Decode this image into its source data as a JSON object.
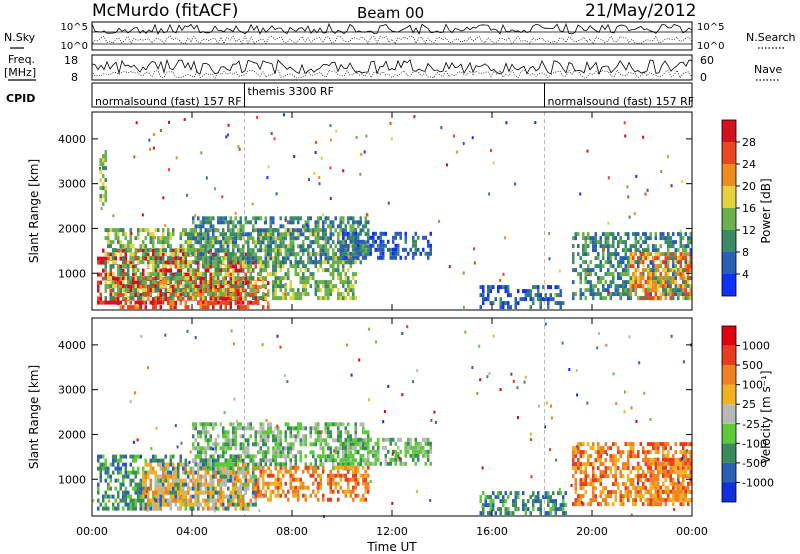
{
  "header": {
    "station": "McMurdo (fitACF)",
    "beam": "Beam 00",
    "date": "21/May/2012"
  },
  "status": {
    "nsky_label": "N.Sky",
    "nsearch_label": "N.Search",
    "freq_label_1": "Freq.",
    "freq_label_2": "[MHz]",
    "nave_label": "Nave",
    "cpid_label": "CPID",
    "count_ticks_left": [
      "10^5",
      "10^0"
    ],
    "count_ticks_right": [
      "10^5",
      "10^0"
    ],
    "freq_ticks_left": [
      "18",
      "8"
    ],
    "nave_ticks_right": [
      "60",
      "0"
    ],
    "cpid_segments": [
      {
        "label": "normalsound (fast) 157 RF",
        "start": 0,
        "end": 6.1
      },
      {
        "label": "themis 3300 RF",
        "start": 6.1,
        "end": 18.1
      },
      {
        "label": "normalsound (fast) 157 RF",
        "start": 18.1,
        "end": 24
      }
    ]
  },
  "chart_data": [
    {
      "type": "heatmap",
      "panel": "power",
      "ylabel": "Slant Range [km]",
      "xlabel": "",
      "x_range": [
        0,
        24
      ],
      "y_range": [
        180,
        4600
      ],
      "y_ticks": [
        1000,
        2000,
        3000,
        4000
      ],
      "colorbar_label": "Power [dB]",
      "colorbar_ticks": [
        "4",
        "8",
        "12",
        "16",
        "20",
        "24",
        "28"
      ],
      "colorbar_colors": [
        "#1030ff",
        "#2a5fb5",
        "#3b8a66",
        "#6ab04c",
        "#e6d23a",
        "#f08c1e",
        "#e8461e",
        "#d4101e"
      ],
      "regions": [
        {
          "t0": 0.2,
          "t1": 6.5,
          "r0": 300,
          "r1": 1500,
          "level": 7
        },
        {
          "t0": 1.0,
          "t1": 7.0,
          "r0": 200,
          "r1": 900,
          "level": 6
        },
        {
          "t0": 0.5,
          "t1": 10.5,
          "r0": 400,
          "r1": 2000,
          "level": 3
        },
        {
          "t0": 4.0,
          "t1": 11.0,
          "r0": 1200,
          "r1": 2200,
          "level": 2
        },
        {
          "t0": 10.0,
          "t1": 13.5,
          "r0": 1300,
          "r1": 1900,
          "level": 1
        },
        {
          "t0": 0.3,
          "t1": 0.6,
          "r0": 2500,
          "r1": 3700,
          "level": 3
        },
        {
          "t0": 19.2,
          "t1": 24.0,
          "r0": 400,
          "r1": 1900,
          "level": 2
        },
        {
          "t0": 21.5,
          "t1": 24.0,
          "r0": 400,
          "r1": 1400,
          "level": 5
        },
        {
          "t0": 15.5,
          "t1": 19.0,
          "r0": 200,
          "r1": 700,
          "level": 1
        }
      ]
    },
    {
      "type": "heatmap",
      "panel": "velocity",
      "ylabel": "Slant Range [km]",
      "xlabel": "Time UT",
      "x_range": [
        0,
        24
      ],
      "y_range": [
        180,
        4600
      ],
      "y_ticks": [
        1000,
        2000,
        3000,
        4000
      ],
      "x_ticks": [
        "00:00",
        "04:00",
        "08:00",
        "12:00",
        "16:00",
        "20:00",
        "00:00"
      ],
      "colorbar_label": "Velocity [m s⁻¹]",
      "colorbar_ticks": [
        "1000",
        "500",
        "100",
        "25",
        "-25",
        "-100",
        "-500",
        "-1000"
      ],
      "colorbar_colors": [
        "#1030e0",
        "#2a5fb5",
        "#3a8a5a",
        "#5cc83a",
        "#b8b8b8",
        "#f0b020",
        "#f08020",
        "#e83c1e",
        "#e00010"
      ],
      "regions": [
        {
          "t0": 0.2,
          "t1": 6.5,
          "r0": 300,
          "r1": 1500,
          "level": 2
        },
        {
          "t0": 2.0,
          "t1": 6.5,
          "r0": 300,
          "r1": 1300,
          "level": 5
        },
        {
          "t0": 4.0,
          "t1": 11.0,
          "r0": 1200,
          "r1": 2200,
          "level": 3
        },
        {
          "t0": 6.5,
          "t1": 11.0,
          "r0": 500,
          "r1": 1300,
          "level": 6
        },
        {
          "t0": 10.0,
          "t1": 13.5,
          "r0": 1300,
          "r1": 1900,
          "level": 3
        },
        {
          "t0": 19.2,
          "t1": 24.0,
          "r0": 400,
          "r1": 1800,
          "level": 6
        },
        {
          "t0": 21.8,
          "t1": 24.0,
          "r0": 500,
          "r1": 1400,
          "level": 6
        },
        {
          "t0": 15.5,
          "t1": 19.0,
          "r0": 200,
          "r1": 700,
          "level": 2
        }
      ]
    }
  ]
}
